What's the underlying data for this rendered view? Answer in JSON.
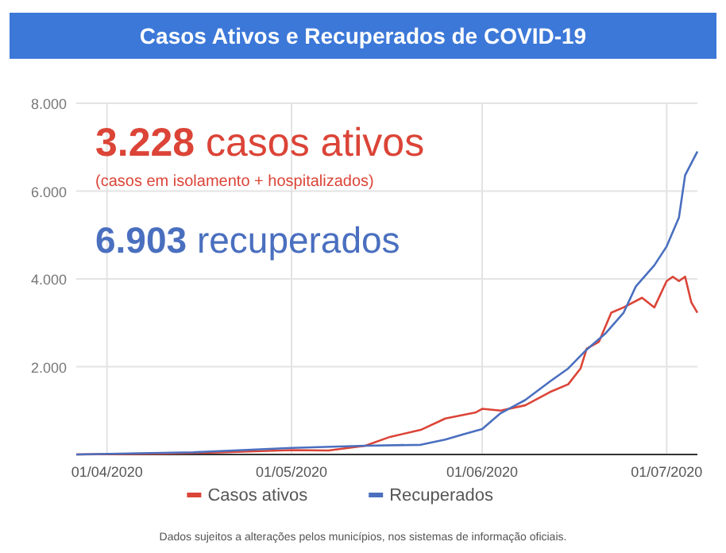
{
  "chart_data": {
    "type": "line",
    "title": "Casos Ativos e Recuperados de COVID-19",
    "xlim": [
      "2020-03-27",
      "2020-07-06"
    ],
    "xticks": [
      {
        "value": "2020-04-01",
        "label": "01/04/2020"
      },
      {
        "value": "2020-05-01",
        "label": "01/05/2020"
      },
      {
        "value": "2020-06-01",
        "label": "01/06/2020"
      },
      {
        "value": "2020-07-01",
        "label": "01/07/2020"
      }
    ],
    "ylim": [
      0,
      8000
    ],
    "yticks": [
      {
        "value": 2000,
        "label": "2.000"
      },
      {
        "value": 4000,
        "label": "4.000"
      },
      {
        "value": 6000,
        "label": "6.000"
      },
      {
        "value": 8000,
        "label": "8.000"
      }
    ],
    "grid": true,
    "legend": "bottom",
    "marker": "none",
    "line_style": "solid",
    "series": [
      {
        "name": "Casos ativos",
        "color": "#db4437",
        "x": [
          "2020-03-27",
          "2020-04-10",
          "2020-04-20",
          "2020-05-01",
          "2020-05-07",
          "2020-05-13",
          "2020-05-17",
          "2020-05-22",
          "2020-05-26",
          "2020-05-31",
          "2020-06-01",
          "2020-06-04",
          "2020-06-08",
          "2020-06-12",
          "2020-06-15",
          "2020-06-17",
          "2020-06-18",
          "2020-06-20",
          "2020-06-22",
          "2020-06-24",
          "2020-06-27",
          "2020-06-29",
          "2020-07-01",
          "2020-07-02",
          "2020-07-03",
          "2020-07-04",
          "2020-07-05",
          "2020-07-06"
        ],
        "values": [
          0,
          20,
          50,
          100,
          90,
          200,
          400,
          560,
          820,
          960,
          1040,
          1000,
          1120,
          1420,
          1600,
          1960,
          2410,
          2570,
          3230,
          3350,
          3570,
          3350,
          3950,
          4050,
          3950,
          4050,
          3470,
          3228
        ]
      },
      {
        "name": "Recuperados",
        "color": "#4a6fbf",
        "x": [
          "2020-03-27",
          "2020-04-15",
          "2020-05-01",
          "2020-05-13",
          "2020-05-22",
          "2020-05-26",
          "2020-05-29",
          "2020-06-01",
          "2020-06-04",
          "2020-06-08",
          "2020-06-12",
          "2020-06-15",
          "2020-06-18",
          "2020-06-21",
          "2020-06-24",
          "2020-06-26",
          "2020-06-29",
          "2020-07-01",
          "2020-07-03",
          "2020-07-04",
          "2020-07-06"
        ],
        "values": [
          0,
          50,
          150,
          200,
          220,
          340,
          460,
          580,
          940,
          1240,
          1660,
          1960,
          2390,
          2750,
          3230,
          3830,
          4310,
          4740,
          5400,
          6360,
          6903
        ]
      }
    ],
    "annotations": [
      "3.228 casos ativos",
      "(casos em isolamento + hospitalizados)",
      "6.903 recuperados",
      "Dados sujeitos a alterações pelos municípios, nos sistemas de informação oficiais."
    ]
  }
}
